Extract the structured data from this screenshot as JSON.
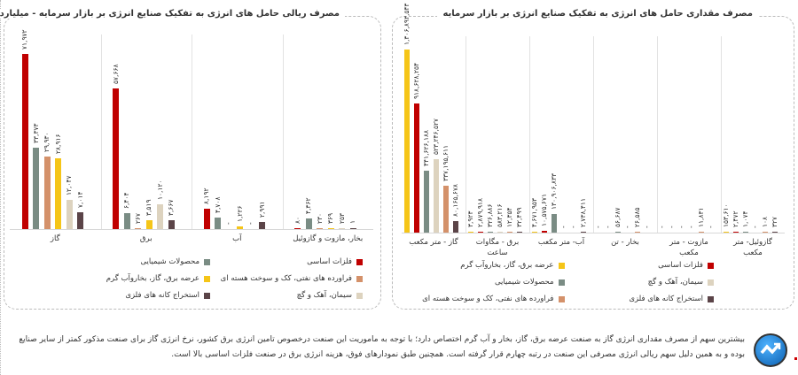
{
  "colors": {
    "basic_metals": "#c00000",
    "chemicals": "#7a8c84",
    "petroleum": "#d4916a",
    "utilities": "#f5c518",
    "cement": "#ddd3bf",
    "mining": "#5b4448"
  },
  "chart_data": [
    {
      "type": "bar",
      "title": "مصرف ریالی حامل های انرژی به تفکیک صنایع انرژی بر بازار سرمایه - میلیارد ریال",
      "categories": [
        "گاز",
        "برق",
        "آب",
        "بخار، مازوت و گازوئیل"
      ],
      "ylim": [
        0,
        80000
      ],
      "grid": false,
      "legend_position": "bottom",
      "series": [
        {
          "name": "فلزات اساسی",
          "color_key": "basic_metals",
          "values": [
            71972,
            57668,
            8192,
            80
          ]
        },
        {
          "name": "محصولات شیمیایی",
          "color_key": "chemicals",
          "values": [
            33373,
            6404,
            4708,
            4362
          ]
        },
        {
          "name": "فراورده های نفتی، کک و سوخت هسته ای",
          "color_key": "petroleum",
          "values": [
            29930,
            267,
            0,
            230
          ]
        },
        {
          "name": "عرضه برق، گاز، بخاروآب گرم",
          "color_key": "utilities",
          "values": [
            28916,
            3519,
            1226,
            369
          ]
        },
        {
          "name": "سیمان، آهک و گچ",
          "color_key": "cement",
          "values": [
            12047,
            10120,
            0,
            253
          ]
        },
        {
          "name": "استخراج کانه های فلزی",
          "color_key": "mining",
          "values": [
            7014,
            3667,
            2991,
            1
          ]
        }
      ],
      "legend_order": [
        0,
        1,
        2,
        3,
        4,
        5
      ]
    },
    {
      "type": "bar",
      "title": "مصرف مقداری حامل های انرژی به تفکیک صنایع انرژی بر بازار سرمایه",
      "categories": [
        "گاز - متر مکعب",
        "برق - مگاوات ساعت",
        "آب- متر مکعب",
        "بخار - تن",
        "مازوت - متر مکعب",
        "گازوئیل- متر مکعب"
      ],
      "ylim": [
        0,
        1400000000
      ],
      "grid": false,
      "legend_position": "bottom",
      "series": [
        {
          "name": "عرضه برق، گاز، بخاروآب گرم",
          "color_key": "utilities",
          "values": [
            1306893543,
            3923,
            4671953,
            0,
            0,
            153610
          ]
        },
        {
          "name": "فلزات اساسی",
          "color_key": "basic_metals",
          "values": [
            918628254,
            2879918,
            10575671,
            0,
            0,
            2472
          ]
        },
        {
          "name": "محصولات شیمیایی",
          "color_key": "chemicals",
          "values": [
            441626188,
            326886,
            130906833,
            56687,
            0,
            1074
          ]
        },
        {
          "name": "سیمان، آهک و گچ",
          "color_key": "cement",
          "values": [
            523246527,
            583216,
            0,
            0,
            0,
            0
          ]
        },
        {
          "name": "فراورده های نفتی، کک و سوخت هسته ای",
          "color_key": "petroleum",
          "values": [
            337195611,
            12354,
            0,
            26585,
            11831,
            108
          ]
        },
        {
          "name": "استخراج کانه های فلزی",
          "color_key": "mining",
          "values": [
            80165678,
            32499,
            2738411,
            0,
            0,
            327
          ]
        }
      ],
      "legend_order": [
        1,
        0,
        3,
        2,
        5,
        4
      ]
    }
  ],
  "note": "بیشترین سهم از مصرف مقداری انرژی گاز به صنعت عرضه برق، گاز، بخار و آب گرم اختصاص دارد؛ با توجه به ماموریت این صنعت درخصوص تامین انرژی برق کشور، نرخ انرژی گاز برای صنعت مذکور کمتر از سایر صنایع بوده و به همین دلیل سهم ریالی انرژی مصرفی این صنعت در رتبه چهارم قرار گرفته است. همچنین طبق نمودارهای فوق، هزینه انرژی برق در صنعت فلزات اساسی بالا است."
}
